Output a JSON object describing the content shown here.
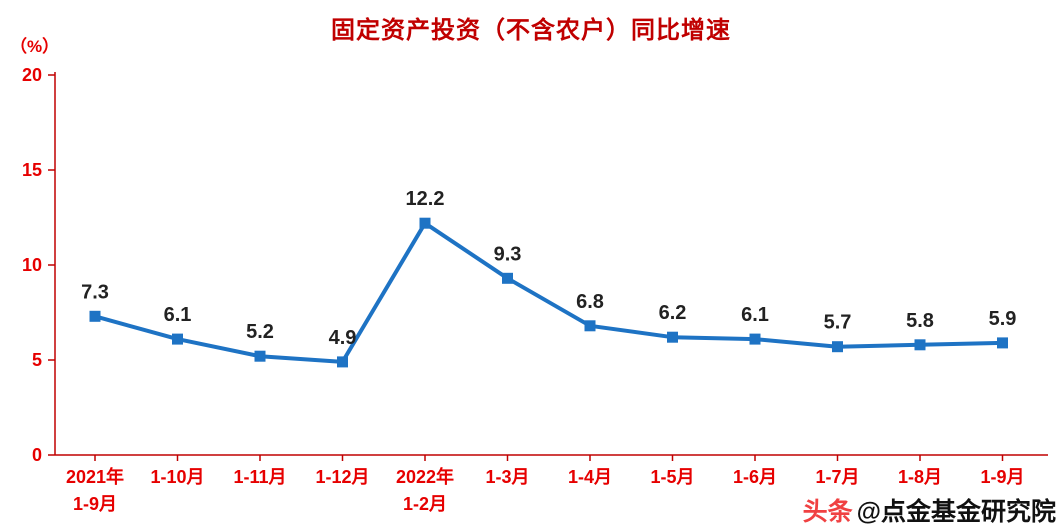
{
  "chart_data": {
    "type": "line",
    "title": "固定资产投资（不含农户）同比增速",
    "ylabel": "（%）",
    "xlabel": "",
    "categories": [
      "2021年1-9月",
      "1-10月",
      "1-11月",
      "1-12月",
      "2022年1-2月",
      "1-3月",
      "1-4月",
      "1-5月",
      "1-6月",
      "1-7月",
      "1-8月",
      "1-9月"
    ],
    "category_lines": [
      [
        "2021年",
        "1-9月"
      ],
      [
        "1-10月"
      ],
      [
        "1-11月"
      ],
      [
        "1-12月"
      ],
      [
        "2022年",
        "1-2月"
      ],
      [
        "1-3月"
      ],
      [
        "1-4月"
      ],
      [
        "1-5月"
      ],
      [
        "1-6月"
      ],
      [
        "1-7月"
      ],
      [
        "1-8月"
      ],
      [
        "1-9月"
      ]
    ],
    "values": [
      7.3,
      6.1,
      5.2,
      4.9,
      12.2,
      9.3,
      6.8,
      6.2,
      6.1,
      5.7,
      5.8,
      5.9
    ],
    "labels": [
      "7.3",
      "6.1",
      "5.2",
      "4.9",
      "12.2",
      "9.3",
      "6.8",
      "6.2",
      "6.1",
      "5.7",
      "5.8",
      "5.9"
    ],
    "ylim": [
      0,
      20
    ],
    "yticks": [
      0,
      5,
      10,
      15,
      20
    ],
    "grid": false,
    "legend": "none",
    "marker": "square",
    "colors": {
      "line": "#1e73c4",
      "marker": "#1e73c4",
      "axis": "#c00000",
      "tick_label": "#e60000",
      "title": "#c00000",
      "data_label": "#222222",
      "background": "#ffffff"
    }
  },
  "watermark": {
    "logo": "头条",
    "handle": "@点金基金研究院",
    "logo_color": "#f04142",
    "text_color": "#111111"
  }
}
